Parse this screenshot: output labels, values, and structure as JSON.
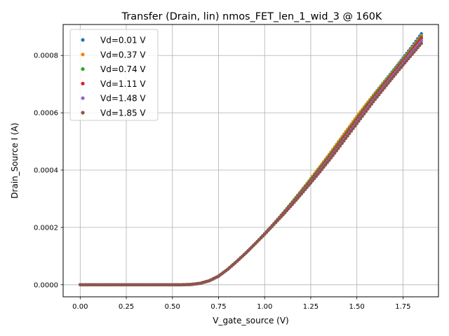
{
  "chart_data": {
    "type": "scatter",
    "title": "Transfer (Drain, lin) nmos_FET_len_1_wid_3 @ 160K",
    "xlabel": "V_gate_source (V)",
    "ylabel": "Drain_Source I (A)",
    "xlim": [
      -0.0925,
      1.9425
    ],
    "ylim": [
      -4.2e-05,
      0.000908
    ],
    "xticks": [
      0.0,
      0.25,
      0.5,
      0.75,
      1.0,
      1.25,
      1.5,
      1.75
    ],
    "xtick_labels": [
      "0.00",
      "0.25",
      "0.50",
      "0.75",
      "1.00",
      "1.25",
      "1.50",
      "1.75"
    ],
    "yticks": [
      0.0,
      0.0002,
      0.0004,
      0.0006,
      0.0008
    ],
    "ytick_labels": [
      "0.0000",
      "0.0002",
      "0.0004",
      "0.0006",
      "0.0008"
    ],
    "grid": true,
    "legend_position": "top-left",
    "x_range": [
      0.0,
      1.85
    ],
    "x_step": 0.01,
    "series": [
      {
        "name": "Vd=0.01 V",
        "color": "#1f77b4",
        "x": [
          0.0,
          0.55,
          0.6,
          0.65,
          0.7,
          0.75,
          0.8,
          0.85,
          0.9,
          0.95,
          1.0,
          1.05,
          1.1,
          1.15,
          1.2,
          1.25,
          1.3,
          1.35,
          1.4,
          1.45,
          1.5,
          1.55,
          1.6,
          1.65,
          1.7,
          1.75,
          1.8,
          1.85
        ],
        "y": [
          0.0,
          0.0,
          1e-06,
          5e-06,
          1.4e-05,
          3e-05,
          5.4e-05,
          8.2e-05,
          0.000112,
          0.000144,
          0.000178,
          0.000213,
          0.00025,
          0.000289,
          0.000329,
          0.00037,
          0.000412,
          0.000455,
          0.000499,
          0.000543,
          0.000587,
          0.000629,
          0.00067,
          0.00071,
          0.00075,
          0.000791,
          0.000832,
          0.000876
        ]
      },
      {
        "name": "Vd=0.37 V",
        "color": "#ff7f0e",
        "x": [
          0.0,
          0.55,
          0.6,
          0.65,
          0.7,
          0.75,
          0.8,
          0.85,
          0.9,
          0.95,
          1.0,
          1.05,
          1.1,
          1.15,
          1.2,
          1.25,
          1.3,
          1.35,
          1.4,
          1.45,
          1.5,
          1.55,
          1.6,
          1.65,
          1.7,
          1.75,
          1.8,
          1.85
        ],
        "y": [
          0.0,
          0.0,
          1e-06,
          5e-06,
          1.4e-05,
          3e-05,
          5.4e-05,
          8.2e-05,
          0.000112,
          0.000144,
          0.000178,
          0.000213,
          0.00025,
          0.000289,
          0.000329,
          0.00037,
          0.000412,
          0.000455,
          0.000499,
          0.000543,
          0.000587,
          0.000629,
          0.000669,
          0.000708,
          0.000747,
          0.000787,
          0.000827,
          0.000869
        ]
      },
      {
        "name": "Vd=0.74 V",
        "color": "#2ca02c",
        "x": [
          0.0,
          0.55,
          0.6,
          0.65,
          0.7,
          0.75,
          0.8,
          0.85,
          0.9,
          0.95,
          1.0,
          1.05,
          1.1,
          1.15,
          1.2,
          1.25,
          1.3,
          1.35,
          1.4,
          1.45,
          1.5,
          1.55,
          1.6,
          1.65,
          1.7,
          1.75,
          1.8,
          1.85
        ],
        "y": [
          0.0,
          0.0,
          1e-06,
          5e-06,
          1.4e-05,
          3e-05,
          5.4e-05,
          8.2e-05,
          0.000112,
          0.000144,
          0.000178,
          0.000213,
          0.00025,
          0.000288,
          0.000327,
          0.000367,
          0.000408,
          0.00045,
          0.000493,
          0.000537,
          0.000581,
          0.000624,
          0.000665,
          0.000705,
          0.000744,
          0.000784,
          0.000824,
          0.000865
        ]
      },
      {
        "name": "Vd=1.11 V",
        "color": "#d62728",
        "x": [
          0.0,
          0.55,
          0.6,
          0.65,
          0.7,
          0.75,
          0.8,
          0.85,
          0.9,
          0.95,
          1.0,
          1.05,
          1.1,
          1.15,
          1.2,
          1.25,
          1.3,
          1.35,
          1.4,
          1.45,
          1.5,
          1.55,
          1.6,
          1.65,
          1.7,
          1.75,
          1.8,
          1.85
        ],
        "y": [
          0.0,
          0.0,
          1e-06,
          5e-06,
          1.4e-05,
          3e-05,
          5.4e-05,
          8.2e-05,
          0.000112,
          0.000144,
          0.000177,
          0.000212,
          0.000248,
          0.000285,
          0.000323,
          0.000362,
          0.000403,
          0.000444,
          0.000487,
          0.000531,
          0.000575,
          0.000618,
          0.000659,
          0.000699,
          0.000739,
          0.000779,
          0.000819,
          0.00086
        ]
      },
      {
        "name": "Vd=1.48 V",
        "color": "#9467bd",
        "x": [
          0.0,
          0.55,
          0.6,
          0.65,
          0.7,
          0.75,
          0.8,
          0.85,
          0.9,
          0.95,
          1.0,
          1.05,
          1.1,
          1.15,
          1.2,
          1.25,
          1.3,
          1.35,
          1.4,
          1.45,
          1.5,
          1.55,
          1.6,
          1.65,
          1.7,
          1.75,
          1.8,
          1.85
        ],
        "y": [
          0.0,
          0.0,
          1e-06,
          5e-06,
          1.4e-05,
          3e-05,
          5.4e-05,
          8.2e-05,
          0.000112,
          0.000144,
          0.000177,
          0.000211,
          0.000246,
          0.000282,
          0.00032,
          0.000358,
          0.000398,
          0.000439,
          0.000481,
          0.000524,
          0.000568,
          0.000611,
          0.000653,
          0.000693,
          0.000733,
          0.000773,
          0.000812,
          0.000851
        ]
      },
      {
        "name": "Vd=1.85 V",
        "color": "#8c564b",
        "x": [
          0.0,
          0.55,
          0.6,
          0.65,
          0.7,
          0.75,
          0.8,
          0.85,
          0.9,
          0.95,
          1.0,
          1.05,
          1.1,
          1.15,
          1.2,
          1.25,
          1.3,
          1.35,
          1.4,
          1.45,
          1.5,
          1.55,
          1.6,
          1.65,
          1.7,
          1.75,
          1.8,
          1.85
        ],
        "y": [
          0.0,
          0.0,
          1e-06,
          5e-06,
          1.4e-05,
          3e-05,
          5.4e-05,
          8.2e-05,
          0.000112,
          0.000144,
          0.000176,
          0.00021,
          0.000244,
          0.00028,
          0.000317,
          0.000355,
          0.000394,
          0.000434,
          0.000476,
          0.000519,
          0.000562,
          0.000605,
          0.000647,
          0.000687,
          0.000727,
          0.000766,
          0.000804,
          0.000842
        ]
      }
    ]
  }
}
